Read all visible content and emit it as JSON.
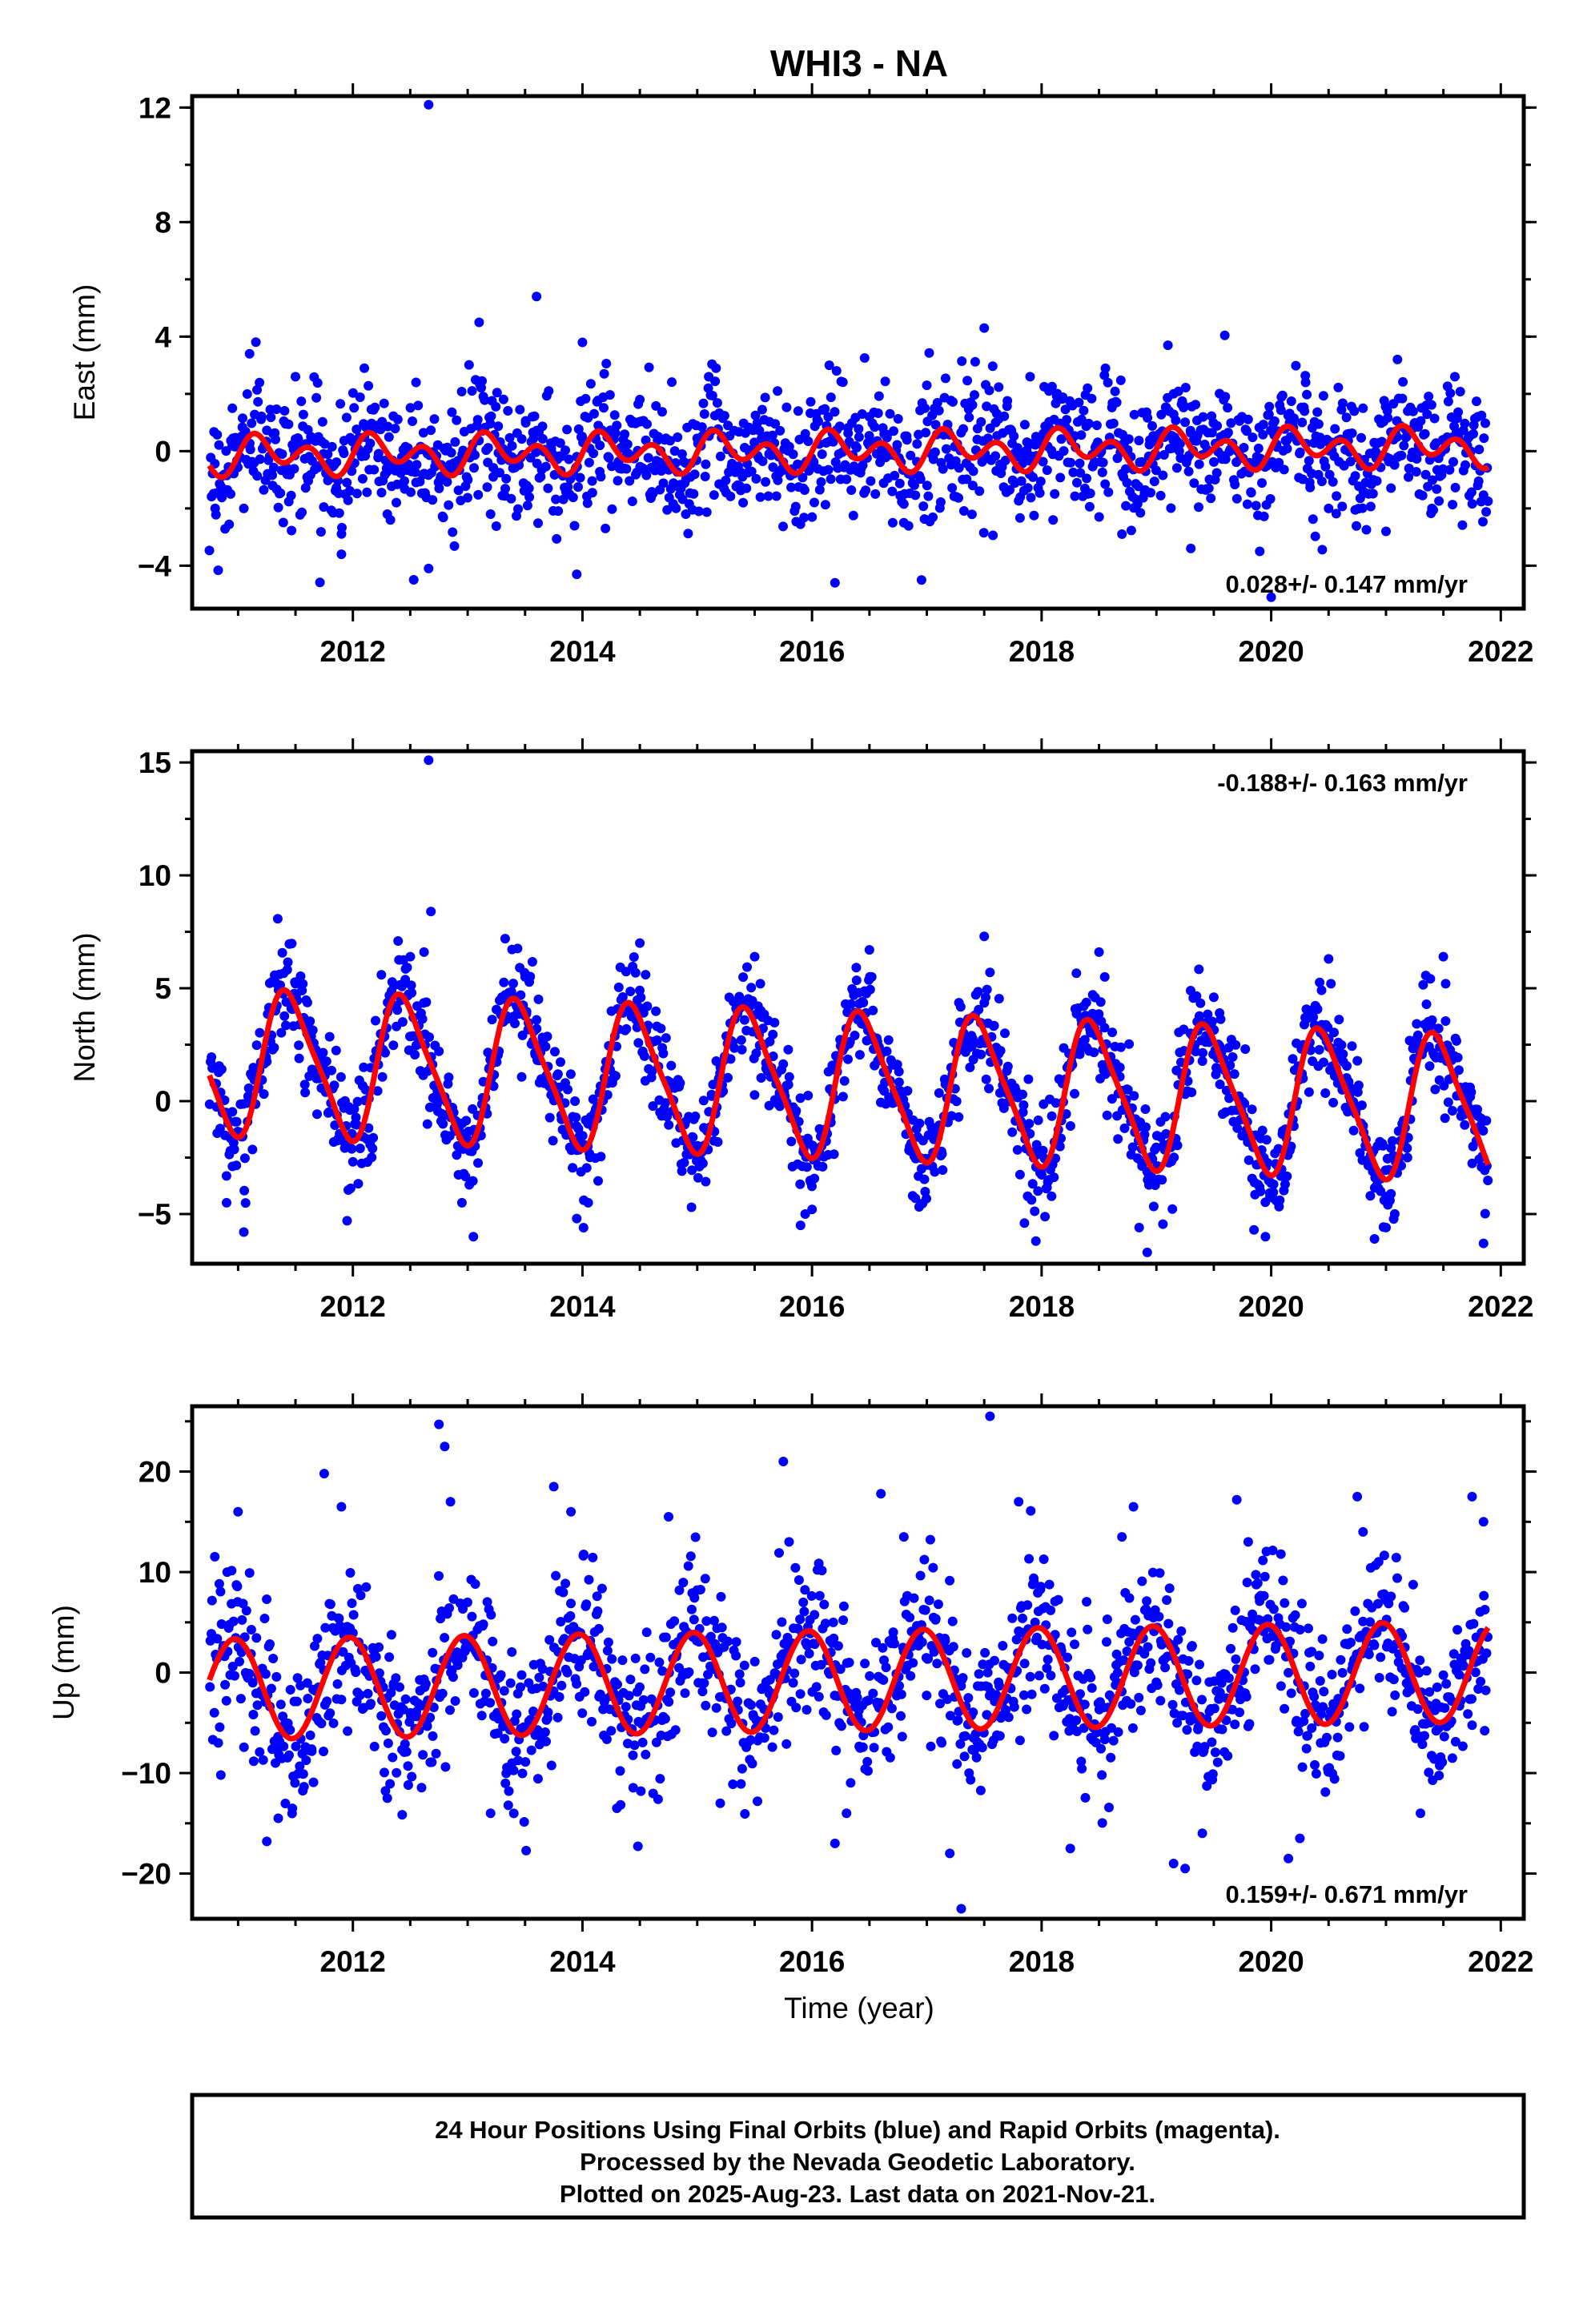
{
  "title": "WHI3 - NA",
  "xlabel": "Time (year)",
  "footer": {
    "line1": "24 Hour Positions Using Final Orbits (blue) and Rapid Orbits (magenta).",
    "line2": "Processed by the Nevada Geodetic Laboratory.",
    "line3": "Plotted on 2025-Aug-23. Last data on 2021-Nov-21."
  },
  "colors": {
    "points": "#0000ff",
    "fit": "#ff0000",
    "frame": "#000000"
  },
  "chart_data": [
    {
      "type": "scatter",
      "ylabel": "East (mm)",
      "rate_label": "0.028+/- 0.147 mm/yr",
      "rate_position": "bottom-right",
      "xlim": [
        2010.6,
        2022.2
      ],
      "ylim": [
        -5.5,
        12.4
      ],
      "xticks": [
        2012,
        2014,
        2016,
        2018,
        2020,
        2022
      ],
      "yticks": [
        -4,
        0,
        4,
        8,
        12
      ],
      "yticklabels": [
        "−4",
        "0",
        "4",
        "8",
        "12"
      ],
      "data_range": [
        2010.75,
        2021.89
      ],
      "series": [
        {
          "kind": "points",
          "x": [
            2010.8,
            2010.95,
            2011.1,
            2011.3,
            2011.5,
            2011.7,
            2011.9,
            2012.1,
            2012.3,
            2012.55,
            2012.66,
            2012.66,
            2013.1,
            2013.2,
            2013.6,
            2013.7,
            2013.95,
            2014.0,
            2014.2,
            2014.5,
            2014.9,
            2015.1,
            2015.4,
            2015.7,
            2016.0,
            2016.15,
            2016.2,
            2016.5,
            2016.8,
            2017.0,
            2017.4,
            2017.5,
            2017.6,
            2017.9,
            2018.1,
            2018.4,
            2018.7,
            2019.1,
            2019.15,
            2019.3,
            2019.6,
            2019.9,
            2020.0,
            2020.3,
            2020.5,
            2020.8,
            2021.0,
            2021.1,
            2021.4,
            2021.6,
            2021.8
          ],
          "y": [
            -2.0,
            1.5,
            3.4,
            -1.2,
            2.6,
            0.5,
            -3.6,
            2.9,
            -2.2,
            2.4,
            12.1,
            -4.1,
            4.5,
            -2.2,
            5.4,
            -1.3,
            -4.3,
            3.8,
            -2.7,
            1.8,
            -2.2,
            2.6,
            -1.8,
            2.1,
            -2.3,
            3.0,
            -4.6,
            1.2,
            -2.5,
            2.3,
            -1.2,
            4.3,
            1.0,
            2.6,
            -2.4,
            2.2,
            -2.9,
            3.7,
            2.0,
            -3.4,
            1.9,
            -3.5,
            -5.1,
            2.4,
            -2.0,
            1.5,
            -2.8,
            3.2,
            -2.0,
            2.6,
            1.2
          ]
        },
        {
          "kind": "fit",
          "offset": 0.0,
          "trend_per_year": 0.028,
          "annual_amplitude": 0.35,
          "semiannual_amplitude": 0.5,
          "phase_year": 0.0
        }
      ]
    },
    {
      "type": "scatter",
      "ylabel": "North (mm)",
      "rate_label": "-0.188+/- 0.163 mm/yr",
      "rate_position": "top-right",
      "xlim": [
        2010.6,
        2022.2
      ],
      "ylim": [
        -7.2,
        15.5
      ],
      "xticks": [
        2012,
        2014,
        2016,
        2018,
        2020,
        2022
      ],
      "yticks": [
        -5,
        0,
        5,
        10,
        15
      ],
      "yticklabels": [
        "−5",
        "0",
        "5",
        "10",
        "15"
      ],
      "data_range": [
        2010.75,
        2021.89
      ],
      "series": [
        {
          "kind": "points",
          "x": [
            2010.9,
            2011.05,
            2011.5,
            2011.6,
            2011.95,
            2012.5,
            2012.62,
            2012.66,
            2012.68,
            2012.95,
            2013.05,
            2013.5,
            2013.6,
            2013.95,
            2014.05,
            2014.5,
            2014.55,
            2014.95,
            2015.5,
            2015.55,
            2015.9,
            2016.0,
            2016.5,
            2016.52,
            2016.9,
            2017.5,
            2017.55,
            2017.85,
            2017.95,
            2018.5,
            2018.55,
            2018.85,
            2018.92,
            2019.5,
            2019.55,
            2019.85,
            2019.95,
            2020.5,
            2020.52,
            2020.9,
            2021.0,
            2021.5,
            2021.52,
            2021.85
          ],
          "y": [
            -4.5,
            -5.8,
            5.2,
            3.0,
            -5.3,
            6.4,
            6.6,
            15.1,
            8.4,
            -4.5,
            -6.0,
            5.5,
            3.6,
            -5.2,
            -4.5,
            7.0,
            5.6,
            -4.7,
            6.4,
            5.2,
            -5.5,
            -4.8,
            6.7,
            5.5,
            -4.3,
            7.3,
            5.7,
            -5.4,
            -6.2,
            6.6,
            5.5,
            -5.6,
            -6.7,
            4.6,
            3.9,
            -5.7,
            -6.0,
            6.3,
            5.2,
            -6.1,
            -5.6,
            6.4,
            5.2,
            -6.3
          ]
        },
        {
          "kind": "fit",
          "offset": 0.7,
          "trend_per_year": -0.188,
          "annual_amplitude": 3.1,
          "semiannual_amplitude": 0.6,
          "phase_year": 0.2
        }
      ]
    },
    {
      "type": "scatter",
      "ylabel": "Up (mm)",
      "rate_label": "0.159+/- 0.671 mm/yr",
      "rate_position": "bottom-right",
      "xlim": [
        2010.6,
        2022.2
      ],
      "ylim": [
        -24.5,
        26.5
      ],
      "xticks": [
        2012,
        2014,
        2016,
        2018,
        2020,
        2022
      ],
      "yticks": [
        -20,
        -10,
        0,
        10,
        20
      ],
      "yticklabels": [
        "−20",
        "−10",
        "0",
        "10",
        "20"
      ],
      "data_range": [
        2010.75,
        2021.89
      ],
      "series": [
        {
          "kind": "points",
          "x": [
            2010.85,
            2011.0,
            2011.25,
            2011.35,
            2011.75,
            2011.9,
            2012.3,
            2012.75,
            2012.8,
            2012.85,
            2013.2,
            2013.75,
            2013.9,
            2014.3,
            2014.75,
            2015.2,
            2015.75,
            2015.8,
            2016.2,
            2016.3,
            2016.6,
            2016.8,
            2017.2,
            2017.3,
            2017.55,
            2017.8,
            2018.25,
            2018.7,
            2018.8,
            2019.15,
            2019.25,
            2019.4,
            2019.7,
            2019.8,
            2020.15,
            2020.25,
            2020.75,
            2020.8,
            2021.3,
            2021.75,
            2021.85
          ],
          "y": [
            -10.2,
            16.0,
            -16.8,
            -14.5,
            19.8,
            16.5,
            -12.5,
            24.7,
            22.5,
            17.0,
            -14.0,
            18.5,
            16.0,
            -13.5,
            15.5,
            -13.0,
            21.0,
            13.0,
            -17.0,
            -14.0,
            17.8,
            13.5,
            -18.0,
            -23.5,
            25.5,
            17.0,
            -17.5,
            13.5,
            16.5,
            -19.0,
            -19.5,
            -16.0,
            17.2,
            13.0,
            -18.5,
            -16.5,
            17.5,
            14.0,
            -14.0,
            17.5,
            15.0
          ]
        },
        {
          "kind": "fit",
          "offset": -0.8,
          "trend_per_year": 0.159,
          "annual_amplitude": 5.0,
          "semiannual_amplitude": 0.0,
          "phase_year": 0.72
        }
      ]
    }
  ]
}
